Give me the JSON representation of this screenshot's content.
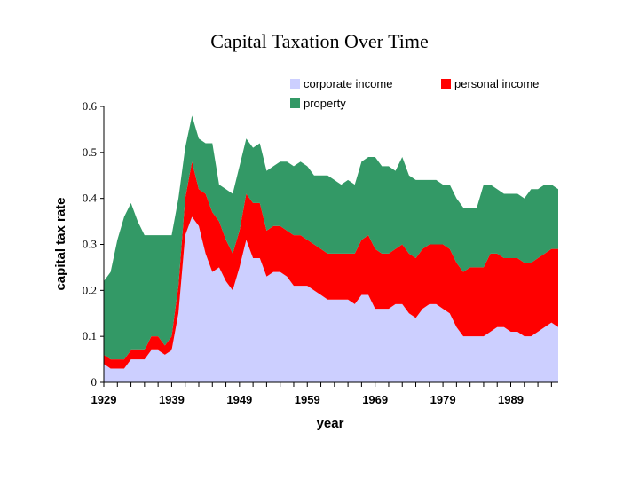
{
  "chart_data": {
    "type": "area",
    "stacked": true,
    "title": "Capital Taxation Over Time",
    "xlabel": "year",
    "ylabel": "capital tax rate",
    "xlim": [
      1929,
      1996
    ],
    "ylim": [
      0,
      0.6
    ],
    "xticks": [
      "1929",
      "1939",
      "1949",
      "1959",
      "1969",
      "1979",
      "1989"
    ],
    "yticks": [
      "0",
      "0.1",
      "0.2",
      "0.3",
      "0.4",
      "0.5",
      "0.6"
    ],
    "legend": {
      "position": "top-right",
      "entries": [
        "corporate income",
        "personal income",
        "property"
      ]
    },
    "colors": {
      "corporate income": "#cccfff",
      "personal income": "#ff0000",
      "property": "#339966"
    },
    "x": [
      1929,
      1930,
      1931,
      1932,
      1933,
      1934,
      1935,
      1936,
      1937,
      1938,
      1939,
      1940,
      1941,
      1942,
      1943,
      1944,
      1945,
      1946,
      1947,
      1948,
      1949,
      1950,
      1951,
      1952,
      1953,
      1954,
      1955,
      1956,
      1957,
      1958,
      1959,
      1960,
      1961,
      1962,
      1963,
      1964,
      1965,
      1966,
      1967,
      1968,
      1969,
      1970,
      1971,
      1972,
      1973,
      1974,
      1975,
      1976,
      1977,
      1978,
      1979,
      1980,
      1981,
      1982,
      1983,
      1984,
      1985,
      1986,
      1987,
      1988,
      1989,
      1990,
      1991,
      1992,
      1993,
      1994,
      1995,
      1996
    ],
    "series": [
      {
        "name": "corporate income",
        "values": [
          0.04,
          0.03,
          0.03,
          0.03,
          0.05,
          0.05,
          0.05,
          0.07,
          0.07,
          0.06,
          0.07,
          0.15,
          0.32,
          0.36,
          0.34,
          0.28,
          0.24,
          0.25,
          0.22,
          0.2,
          0.25,
          0.31,
          0.27,
          0.27,
          0.23,
          0.24,
          0.24,
          0.23,
          0.21,
          0.21,
          0.21,
          0.2,
          0.19,
          0.18,
          0.18,
          0.18,
          0.18,
          0.17,
          0.19,
          0.19,
          0.16,
          0.16,
          0.16,
          0.17,
          0.17,
          0.15,
          0.14,
          0.16,
          0.17,
          0.17,
          0.16,
          0.15,
          0.12,
          0.1,
          0.1,
          0.1,
          0.1,
          0.11,
          0.12,
          0.12,
          0.11,
          0.11,
          0.1,
          0.1,
          0.11,
          0.12,
          0.13,
          0.12
        ]
      },
      {
        "name": "personal income",
        "values": [
          0.02,
          0.02,
          0.02,
          0.02,
          0.02,
          0.02,
          0.02,
          0.03,
          0.03,
          0.02,
          0.03,
          0.06,
          0.08,
          0.12,
          0.08,
          0.13,
          0.13,
          0.1,
          0.09,
          0.08,
          0.08,
          0.1,
          0.12,
          0.12,
          0.1,
          0.1,
          0.1,
          0.1,
          0.11,
          0.11,
          0.1,
          0.1,
          0.1,
          0.1,
          0.1,
          0.1,
          0.1,
          0.11,
          0.12,
          0.13,
          0.13,
          0.12,
          0.12,
          0.12,
          0.13,
          0.13,
          0.13,
          0.13,
          0.13,
          0.13,
          0.14,
          0.14,
          0.14,
          0.14,
          0.15,
          0.15,
          0.15,
          0.17,
          0.16,
          0.15,
          0.16,
          0.16,
          0.16,
          0.16,
          0.16,
          0.16,
          0.16,
          0.17
        ]
      },
      {
        "name": "property",
        "values": [
          0.16,
          0.19,
          0.26,
          0.31,
          0.32,
          0.28,
          0.25,
          0.22,
          0.22,
          0.24,
          0.22,
          0.19,
          0.11,
          0.1,
          0.11,
          0.11,
          0.15,
          0.08,
          0.11,
          0.13,
          0.14,
          0.12,
          0.12,
          0.13,
          0.13,
          0.13,
          0.14,
          0.15,
          0.15,
          0.16,
          0.16,
          0.15,
          0.16,
          0.17,
          0.16,
          0.15,
          0.16,
          0.15,
          0.17,
          0.17,
          0.2,
          0.19,
          0.19,
          0.17,
          0.19,
          0.17,
          0.17,
          0.15,
          0.14,
          0.14,
          0.13,
          0.14,
          0.14,
          0.14,
          0.13,
          0.13,
          0.18,
          0.15,
          0.14,
          0.14,
          0.14,
          0.14,
          0.14,
          0.16,
          0.15,
          0.15,
          0.14,
          0.13
        ]
      }
    ]
  }
}
